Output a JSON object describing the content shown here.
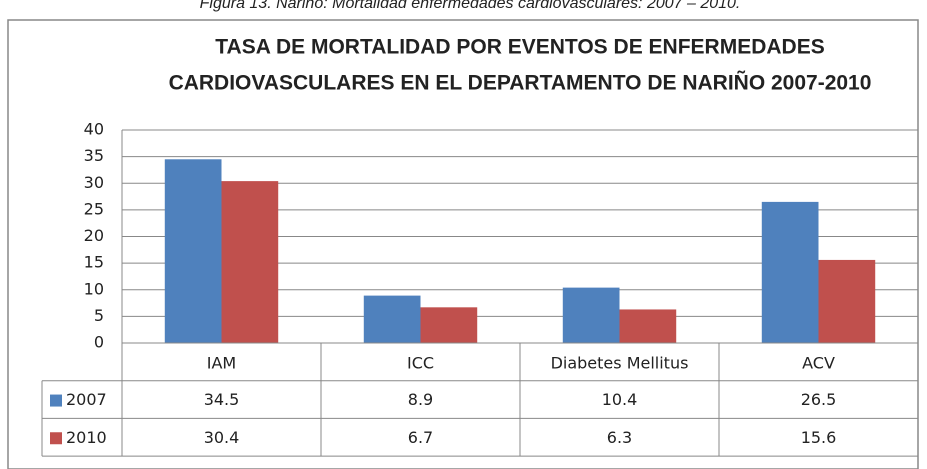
{
  "caption": "Figura 13. Nariño: Mortalidad enfermedades cardiovasculares: 2007 – 2010.",
  "chart_data": {
    "type": "bar",
    "title": [
      "TASA DE MORTALIDAD POR EVENTOS DE ENFERMEDADES",
      "CARDIOVASCULARES EN EL DEPARTAMENTO DE NARIÑO 2007-2010"
    ],
    "categories": [
      "IAM",
      "ICC",
      "Diabetes Mellitus",
      "ACV"
    ],
    "series": [
      {
        "name": "2007",
        "color": "#4f81bd",
        "values": [
          34.5,
          8.9,
          10.4,
          26.5
        ]
      },
      {
        "name": "2010",
        "color": "#c0504d",
        "values": [
          30.4,
          6.7,
          6.3,
          15.6
        ]
      }
    ],
    "ylim": [
      0,
      40
    ],
    "yticks": [
      0,
      5,
      10,
      15,
      20,
      25,
      30,
      35,
      40
    ],
    "grid": true,
    "data_table": true
  }
}
